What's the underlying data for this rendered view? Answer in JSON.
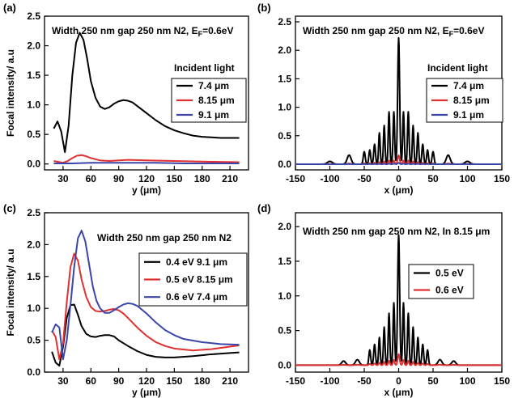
{
  "chart_data": [
    {
      "panel_label": "(a)",
      "type": "line",
      "title": "Width 250 nm gap 250 nm N2, E",
      "title_sub": "F",
      "title_tail": "=0.6eV",
      "xlabel": "y (μm)",
      "ylabel": "Focal intensity/ a.u",
      "xlim": [
        10,
        230
      ],
      "ylim": [
        -0.1,
        2.5
      ],
      "xticks": [
        30,
        60,
        90,
        120,
        150,
        180,
        210
      ],
      "yticks": [
        0.0,
        0.5,
        1.0,
        1.5,
        2.0,
        2.5
      ],
      "ytick_labels": [
        "0.0",
        "0.5",
        "1.0",
        "1.5",
        "2.0",
        "2.5"
      ],
      "legend_title": "Incident light",
      "legend_position": "right",
      "series": [
        {
          "name": "7.4 μm",
          "color": "#000000",
          "x": [
            20,
            24,
            28,
            32,
            36,
            40,
            44,
            48,
            52,
            56,
            60,
            65,
            70,
            75,
            80,
            85,
            90,
            95,
            100,
            105,
            110,
            120,
            130,
            140,
            150,
            160,
            170,
            180,
            190,
            200,
            210,
            220
          ],
          "y": [
            0.6,
            0.72,
            0.55,
            0.2,
            0.65,
            1.5,
            2.05,
            2.22,
            2.1,
            1.78,
            1.4,
            1.12,
            0.97,
            0.93,
            0.96,
            1.02,
            1.06,
            1.08,
            1.07,
            1.04,
            0.98,
            0.86,
            0.74,
            0.64,
            0.57,
            0.52,
            0.48,
            0.46,
            0.45,
            0.44,
            0.44,
            0.44
          ]
        },
        {
          "name": "8.15 μm",
          "color": "#e03030",
          "x": [
            20,
            30,
            35,
            40,
            45,
            50,
            55,
            60,
            70,
            80,
            90,
            100,
            120,
            150,
            180,
            220
          ],
          "y": [
            0.05,
            0.02,
            0.05,
            0.1,
            0.14,
            0.15,
            0.13,
            0.1,
            0.06,
            0.05,
            0.06,
            0.07,
            0.06,
            0.05,
            0.04,
            0.03
          ]
        },
        {
          "name": "9.1 μm",
          "color": "#3b45a8",
          "x": [
            20,
            40,
            60,
            80,
            100,
            130,
            160,
            190,
            220
          ],
          "y": [
            0.01,
            0.01,
            0.02,
            0.02,
            0.02,
            0.02,
            0.01,
            0.01,
            0.01
          ]
        }
      ]
    },
    {
      "panel_label": "(b)",
      "type": "line",
      "title": "Width 250 nm gap 250 nm N2, E",
      "title_sub": "F",
      "title_tail": "=0.6eV",
      "xlabel": "x (μm)",
      "ylabel": "",
      "xlim": [
        -150,
        150
      ],
      "ylim": [
        -0.1,
        2.6
      ],
      "xticks": [
        -150,
        -100,
        -50,
        0,
        50,
        100,
        150
      ],
      "yticks": [
        0.0,
        0.5,
        1.0,
        1.5,
        2.0,
        2.5
      ],
      "ytick_labels": [
        "0.0",
        "0.5",
        "1.0",
        "1.5",
        "2.0",
        "2.5"
      ],
      "legend_title": "Incident light",
      "legend_position": "right",
      "peaks": [
        {
          "x": 0,
          "h": 2.22,
          "w": 2.0
        },
        {
          "x": 7,
          "h": 0.92,
          "w": 1.6
        },
        {
          "x": -7,
          "h": 0.92,
          "w": 1.6
        },
        {
          "x": 14,
          "h": 0.92,
          "w": 1.6
        },
        {
          "x": -14,
          "h": 0.92,
          "w": 1.6
        },
        {
          "x": 21,
          "h": 0.68,
          "w": 1.6
        },
        {
          "x": -21,
          "h": 0.68,
          "w": 1.6
        },
        {
          "x": 28,
          "h": 0.55,
          "w": 1.6
        },
        {
          "x": -28,
          "h": 0.55,
          "w": 1.6
        },
        {
          "x": 35,
          "h": 0.35,
          "w": 1.8
        },
        {
          "x": -35,
          "h": 0.35,
          "w": 1.8
        },
        {
          "x": 42,
          "h": 0.25,
          "w": 1.8
        },
        {
          "x": -42,
          "h": 0.25,
          "w": 1.8
        },
        {
          "x": 50,
          "h": 0.22,
          "w": 2.0
        },
        {
          "x": -50,
          "h": 0.22,
          "w": 2.0
        },
        {
          "x": 72,
          "h": 0.16,
          "w": 4.0
        },
        {
          "x": -72,
          "h": 0.16,
          "w": 4.0
        },
        {
          "x": 100,
          "h": 0.05,
          "w": 5.0
        },
        {
          "x": -100,
          "h": 0.05,
          "w": 5.0
        }
      ],
      "series": [
        {
          "name": "7.4 μm",
          "color": "#000000",
          "scale": 1.0
        },
        {
          "name": "8.15 μm",
          "color": "#e03030",
          "scale": 0.07
        },
        {
          "name": "9.1 μm",
          "color": "#3b45a8",
          "scale": 0.01
        }
      ]
    },
    {
      "panel_label": "(c)",
      "type": "line",
      "title": "Width 250 nm gap 250 nm N2",
      "xlabel": "y (μm)",
      "ylabel": "Focal intensity/ a.u",
      "xlim": [
        10,
        230
      ],
      "ylim": [
        0.0,
        2.5
      ],
      "xticks": [
        30,
        60,
        90,
        120,
        150,
        180,
        210
      ],
      "yticks": [
        0.0,
        0.5,
        1.0,
        1.5,
        2.0,
        2.5
      ],
      "ytick_labels": [
        "0.0",
        "0.5",
        "1.0",
        "1.5",
        "2.0",
        "2.5"
      ],
      "legend_position": "right",
      "series": [
        {
          "name": "0.4 eV 9.1 μm",
          "color": "#000000",
          "x": [
            18,
            22,
            26,
            30,
            34,
            38,
            42,
            46,
            50,
            55,
            60,
            65,
            70,
            75,
            80,
            85,
            90,
            100,
            110,
            120,
            130,
            140,
            150,
            170,
            190,
            210,
            220
          ],
          "y": [
            0.32,
            0.15,
            0.1,
            0.4,
            0.85,
            1.05,
            1.06,
            0.9,
            0.72,
            0.6,
            0.56,
            0.55,
            0.57,
            0.58,
            0.58,
            0.56,
            0.5,
            0.41,
            0.33,
            0.27,
            0.24,
            0.23,
            0.23,
            0.25,
            0.28,
            0.3,
            0.31
          ]
        },
        {
          "name": "0.5 eV 8.15 μm",
          "color": "#e03030",
          "x": [
            18,
            22,
            26,
            30,
            34,
            38,
            42,
            46,
            50,
            55,
            60,
            65,
            70,
            75,
            80,
            85,
            90,
            95,
            100,
            110,
            120,
            130,
            140,
            150,
            170,
            190,
            210,
            220
          ],
          "y": [
            0.65,
            0.55,
            0.2,
            0.45,
            1.1,
            1.65,
            1.86,
            1.75,
            1.45,
            1.18,
            1.02,
            0.96,
            0.95,
            0.96,
            0.98,
            0.99,
            0.97,
            0.92,
            0.85,
            0.7,
            0.57,
            0.47,
            0.41,
            0.37,
            0.34,
            0.36,
            0.4,
            0.42
          ]
        },
        {
          "name": "0.6 eV 7.4 μm",
          "color": "#3b45a8",
          "x": [
            18,
            22,
            26,
            30,
            34,
            38,
            42,
            46,
            50,
            54,
            58,
            62,
            66,
            70,
            75,
            80,
            85,
            90,
            95,
            100,
            105,
            110,
            120,
            130,
            140,
            150,
            160,
            180,
            200,
            220
          ],
          "y": [
            0.62,
            0.75,
            0.7,
            0.2,
            0.5,
            1.05,
            1.65,
            2.1,
            2.22,
            2.05,
            1.7,
            1.35,
            1.12,
            1.0,
            0.93,
            0.93,
            0.97,
            1.02,
            1.06,
            1.08,
            1.07,
            1.04,
            0.92,
            0.78,
            0.66,
            0.58,
            0.52,
            0.47,
            0.44,
            0.43
          ]
        }
      ]
    },
    {
      "panel_label": "(d)",
      "type": "line",
      "title": "Width 250 nm gap 250 nm N2, In 8.15 μm",
      "xlabel": "x (μm)",
      "ylabel": "",
      "xlim": [
        -150,
        150
      ],
      "ylim": [
        -0.1,
        2.2
      ],
      "xticks": [
        -150,
        -100,
        -50,
        0,
        50,
        100,
        150
      ],
      "yticks": [
        0.0,
        0.5,
        1.0,
        1.5,
        2.0
      ],
      "ytick_labels": [
        "0.0",
        "0.5",
        "1.0",
        "1.5",
        "2.0"
      ],
      "legend_position": "right",
      "peaks": [
        {
          "x": 0,
          "h": 1.88,
          "w": 2.0
        },
        {
          "x": 7,
          "h": 0.9,
          "w": 1.6
        },
        {
          "x": -7,
          "h": 0.9,
          "w": 1.6
        },
        {
          "x": 14,
          "h": 0.75,
          "w": 1.6
        },
        {
          "x": -14,
          "h": 0.75,
          "w": 1.6
        },
        {
          "x": 21,
          "h": 0.55,
          "w": 1.6
        },
        {
          "x": -21,
          "h": 0.55,
          "w": 1.6
        },
        {
          "x": 28,
          "h": 0.4,
          "w": 1.6
        },
        {
          "x": -28,
          "h": 0.4,
          "w": 1.6
        },
        {
          "x": 35,
          "h": 0.3,
          "w": 1.8
        },
        {
          "x": -35,
          "h": 0.3,
          "w": 1.8
        },
        {
          "x": 42,
          "h": 0.22,
          "w": 1.8
        },
        {
          "x": -42,
          "h": 0.22,
          "w": 1.8
        },
        {
          "x": 60,
          "h": 0.08,
          "w": 4.0
        },
        {
          "x": -60,
          "h": 0.08,
          "w": 4.0
        },
        {
          "x": 80,
          "h": 0.06,
          "w": 4.0
        },
        {
          "x": -80,
          "h": 0.06,
          "w": 4.0
        }
      ],
      "series": [
        {
          "name": "0.5 eV",
          "color": "#000000",
          "scale": 1.0
        },
        {
          "name": "0.6 eV",
          "color": "#e03030",
          "scale": 0.085
        }
      ]
    }
  ]
}
